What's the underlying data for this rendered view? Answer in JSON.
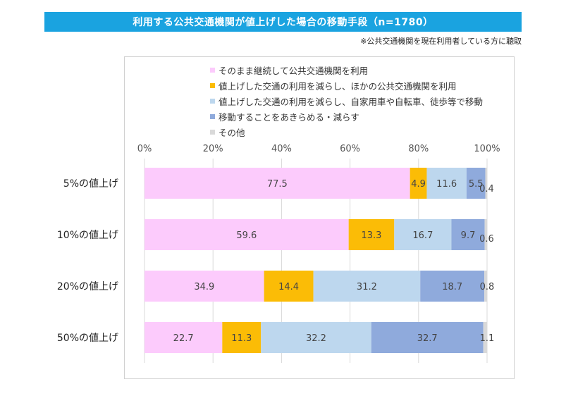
{
  "header": {
    "title": "利用する公共交通機関が値上げした場合の移動手段（n=1780）",
    "note": "※公共交通機関を現在利用者している方に聴取"
  },
  "chart_data": {
    "type": "bar",
    "orientation": "horizontal-stacked-100",
    "title": "利用する公共交通機関が値上げした場合の移動手段（n=1780）",
    "categories": [
      "5%の値上げ",
      "10%の値上げ",
      "20%の値上げ",
      "50%の値上げ"
    ],
    "ticks": [
      "0%",
      "20%",
      "40%",
      "60%",
      "80%",
      "100%"
    ],
    "xlim": [
      0,
      100
    ],
    "grid": true,
    "legend_position": "top",
    "series": [
      {
        "name": "そのまま継続して公共交通機関を利用",
        "color": "#fccbfc",
        "values": [
          77.5,
          59.6,
          34.9,
          22.7
        ]
      },
      {
        "name": "値上げした交通の利用を減らし、ほかの公共交通機関を利用",
        "color": "#fbbc06",
        "values": [
          4.9,
          13.3,
          14.4,
          11.3
        ]
      },
      {
        "name": "値上げした交通の利用を減らし、自家用車や自転車、徒歩等で移動",
        "color": "#bdd7ee",
        "values": [
          11.6,
          16.7,
          31.2,
          32.2
        ]
      },
      {
        "name": "移動することをあきらめる・減らす",
        "color": "#8faadc",
        "values": [
          5.5,
          9.7,
          18.7,
          32.7
        ]
      },
      {
        "name": "その他",
        "color": "#d9d9d9",
        "values": [
          0.4,
          0.6,
          0.8,
          1.1
        ]
      }
    ]
  }
}
